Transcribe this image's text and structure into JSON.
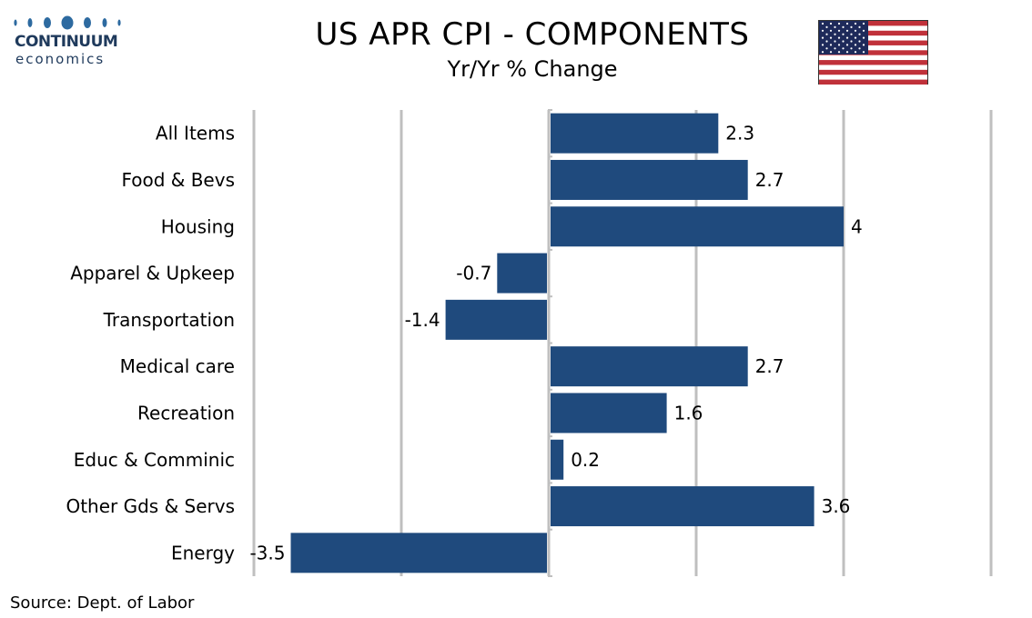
{
  "logo": {
    "name": "CONTINUUM",
    "sub": "economics",
    "color": "#2d6aa0"
  },
  "header": {
    "title": "US APR CPI - COMPONENTS",
    "subtitle": "Yr/Yr % Change"
  },
  "flag": {
    "icon": "us-flag-icon"
  },
  "source": "Source: Dept. of Labor",
  "chart_data": {
    "type": "bar",
    "orientation": "horizontal",
    "title": "US APR CPI - COMPONENTS",
    "subtitle": "Yr/Yr % Change",
    "categories": [
      "All Items",
      "Food & Bevs",
      "Housing",
      "Apparel & Upkeep",
      "Transportation",
      "Medical care",
      "Recreation",
      "Educ & Comminic",
      "Other Gds & Servs",
      "Energy"
    ],
    "values": [
      2.3,
      2.7,
      4,
      -0.7,
      -1.4,
      2.7,
      1.6,
      0.2,
      3.6,
      -3.5
    ],
    "value_labels": [
      "2.3",
      "2.7",
      "4",
      "-0.7",
      "-1.4",
      "2.7",
      "1.6",
      "0.2",
      "3.6",
      "-3.5"
    ],
    "xlim": [
      -4,
      6
    ],
    "gridlines": [
      -4,
      -2,
      0,
      2,
      4,
      6
    ],
    "grid": true,
    "bar_color": "#1f4a7d",
    "grid_color": "#bfbfbf"
  }
}
